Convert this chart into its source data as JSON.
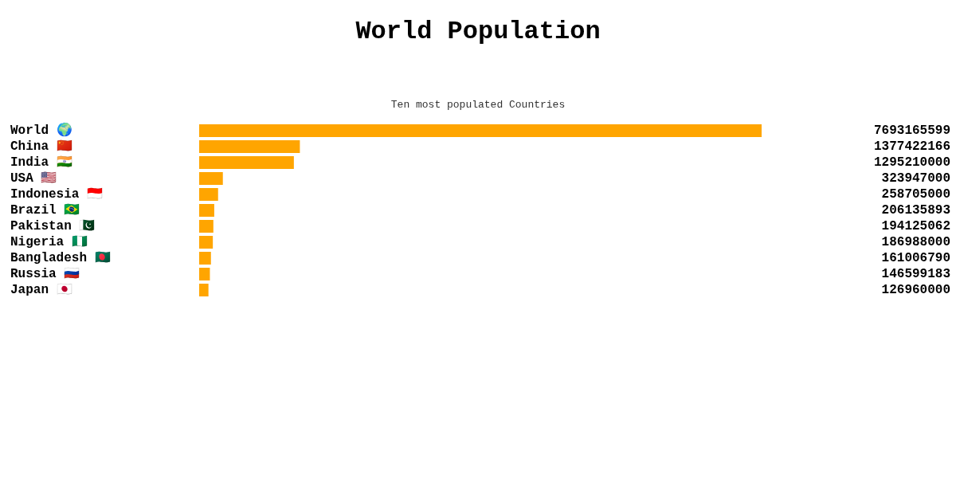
{
  "chart_data": {
    "type": "bar",
    "orientation": "horizontal",
    "title": "World Population",
    "subtitle": "Ten most populated Countries",
    "categories": [
      "World 🌍",
      "China 🇨🇳",
      "India 🇮🇳",
      "USA 🇺🇸",
      "Indonesia 🇮🇩",
      "Brazil 🇧🇷",
      "Pakistan 🇵🇰",
      "Nigeria 🇳🇬",
      "Bangladesh 🇧🇩",
      "Russia 🇷🇺",
      "Japan 🇯🇵"
    ],
    "values": [
      7693165599,
      1377422166,
      1295210000,
      323947000,
      258705000,
      206135893,
      194125062,
      186988000,
      161006790,
      146599183,
      126960000
    ],
    "color": "#ffa500",
    "data_labels": true
  }
}
